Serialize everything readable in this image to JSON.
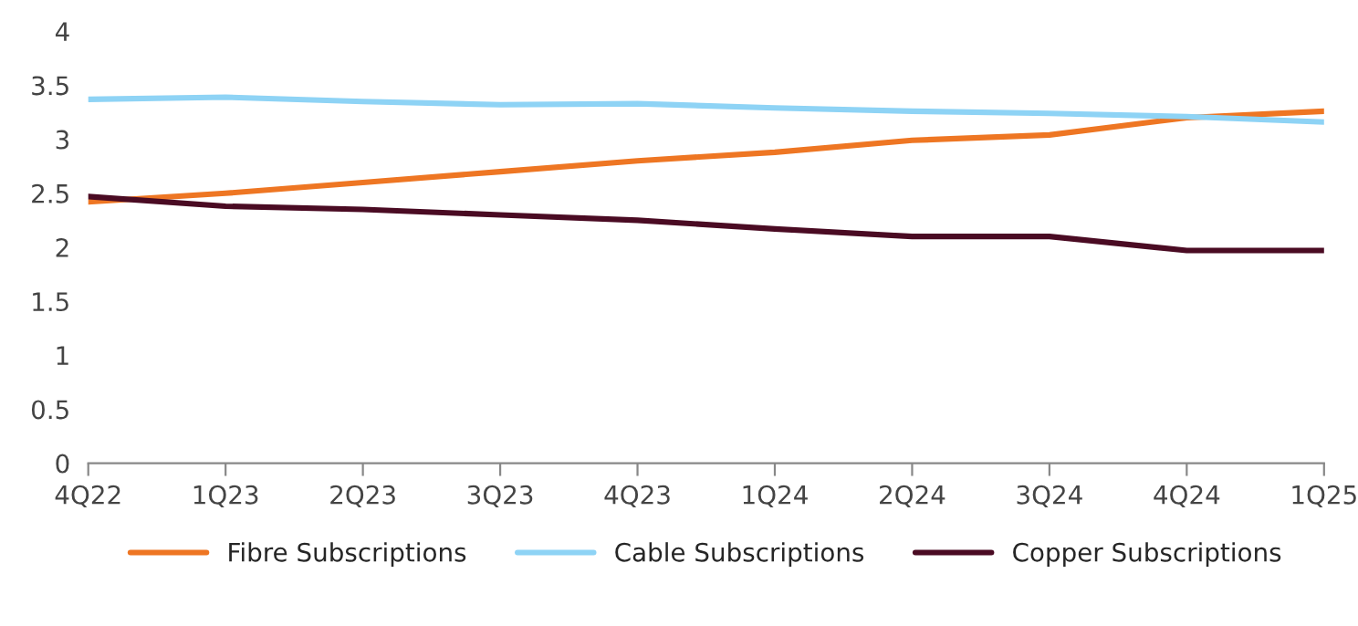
{
  "chart_data": {
    "type": "line",
    "categories": [
      "4Q22",
      "1Q23",
      "2Q23",
      "3Q23",
      "4Q23",
      "1Q24",
      "2Q24",
      "3Q24",
      "4Q24",
      "1Q25"
    ],
    "series": [
      {
        "name": "Fibre Subscriptions",
        "color": "#ee7623",
        "values": [
          2.42,
          2.5,
          2.6,
          2.7,
          2.8,
          2.88,
          2.99,
          3.04,
          3.2,
          3.26
        ]
      },
      {
        "name": "Cable Subscriptions",
        "color": "#8ed3f5",
        "values": [
          3.37,
          3.39,
          3.35,
          3.32,
          3.33,
          3.29,
          3.26,
          3.24,
          3.21,
          3.16
        ]
      },
      {
        "name": "Copper Subscriptions",
        "color": "#4a0b23",
        "values": [
          2.47,
          2.38,
          2.35,
          2.3,
          2.25,
          2.17,
          2.1,
          2.1,
          1.97,
          1.97
        ]
      }
    ],
    "ylim": [
      0,
      4
    ],
    "yticks": [
      0,
      0.5,
      1,
      1.5,
      2,
      2.5,
      3,
      3.5,
      4
    ],
    "grid": false,
    "legend": "bottom",
    "marker": "none",
    "line_style": "solid"
  }
}
